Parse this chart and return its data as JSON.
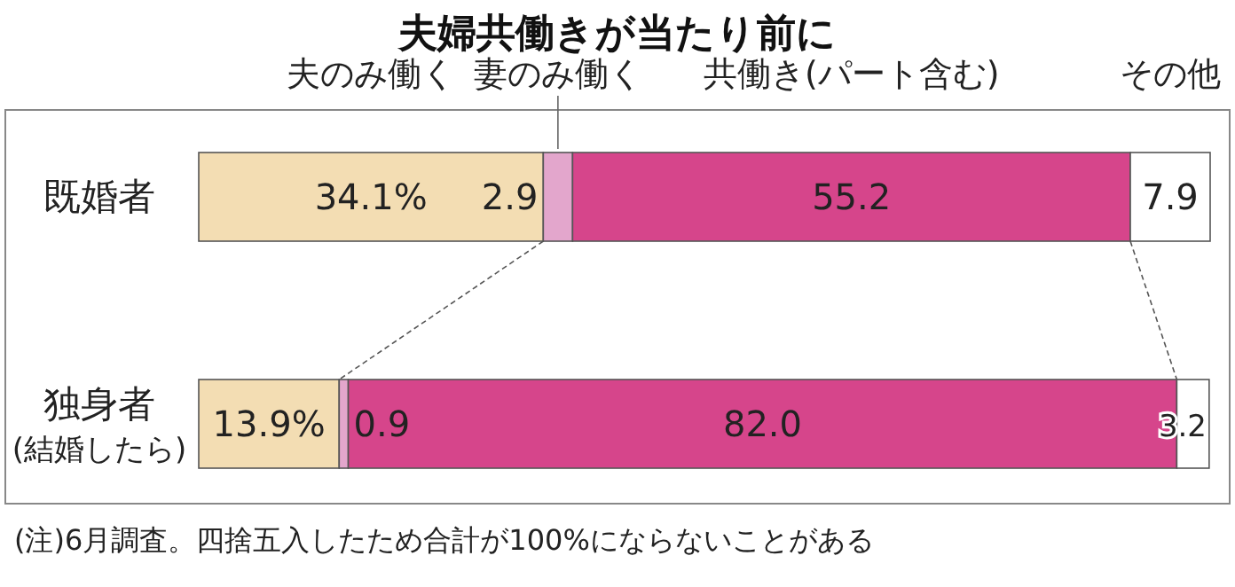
{
  "chart_data": {
    "type": "bar",
    "orientation": "horizontal",
    "stacked": true,
    "title": "夫婦共働きが当たり前に",
    "categories": [
      "既婚者",
      "独身者\n(結婚したら)"
    ],
    "series": [
      {
        "name": "夫のみ働く",
        "color": "#f3ddb3",
        "values": [
          34.1,
          13.9
        ],
        "value_labels": [
          "34.1%",
          "13.9%"
        ]
      },
      {
        "name": "妻のみ働く",
        "color": "#e3a6cc",
        "values": [
          2.9,
          0.9
        ],
        "value_labels": [
          "2.9",
          "0.9"
        ]
      },
      {
        "name": "共働き(パート含む)",
        "color": "#d6458b",
        "values": [
          55.2,
          82.0
        ],
        "value_labels": [
          "55.2",
          "82.0"
        ]
      },
      {
        "name": "その他",
        "color": "#ffffff",
        "values": [
          7.9,
          3.2
        ],
        "value_labels": [
          "7.9",
          "3.2"
        ]
      }
    ],
    "legend": "top",
    "annotations": [
      "(注)6月調査。四捨五入したため合計が100%にならないことがある"
    ]
  }
}
